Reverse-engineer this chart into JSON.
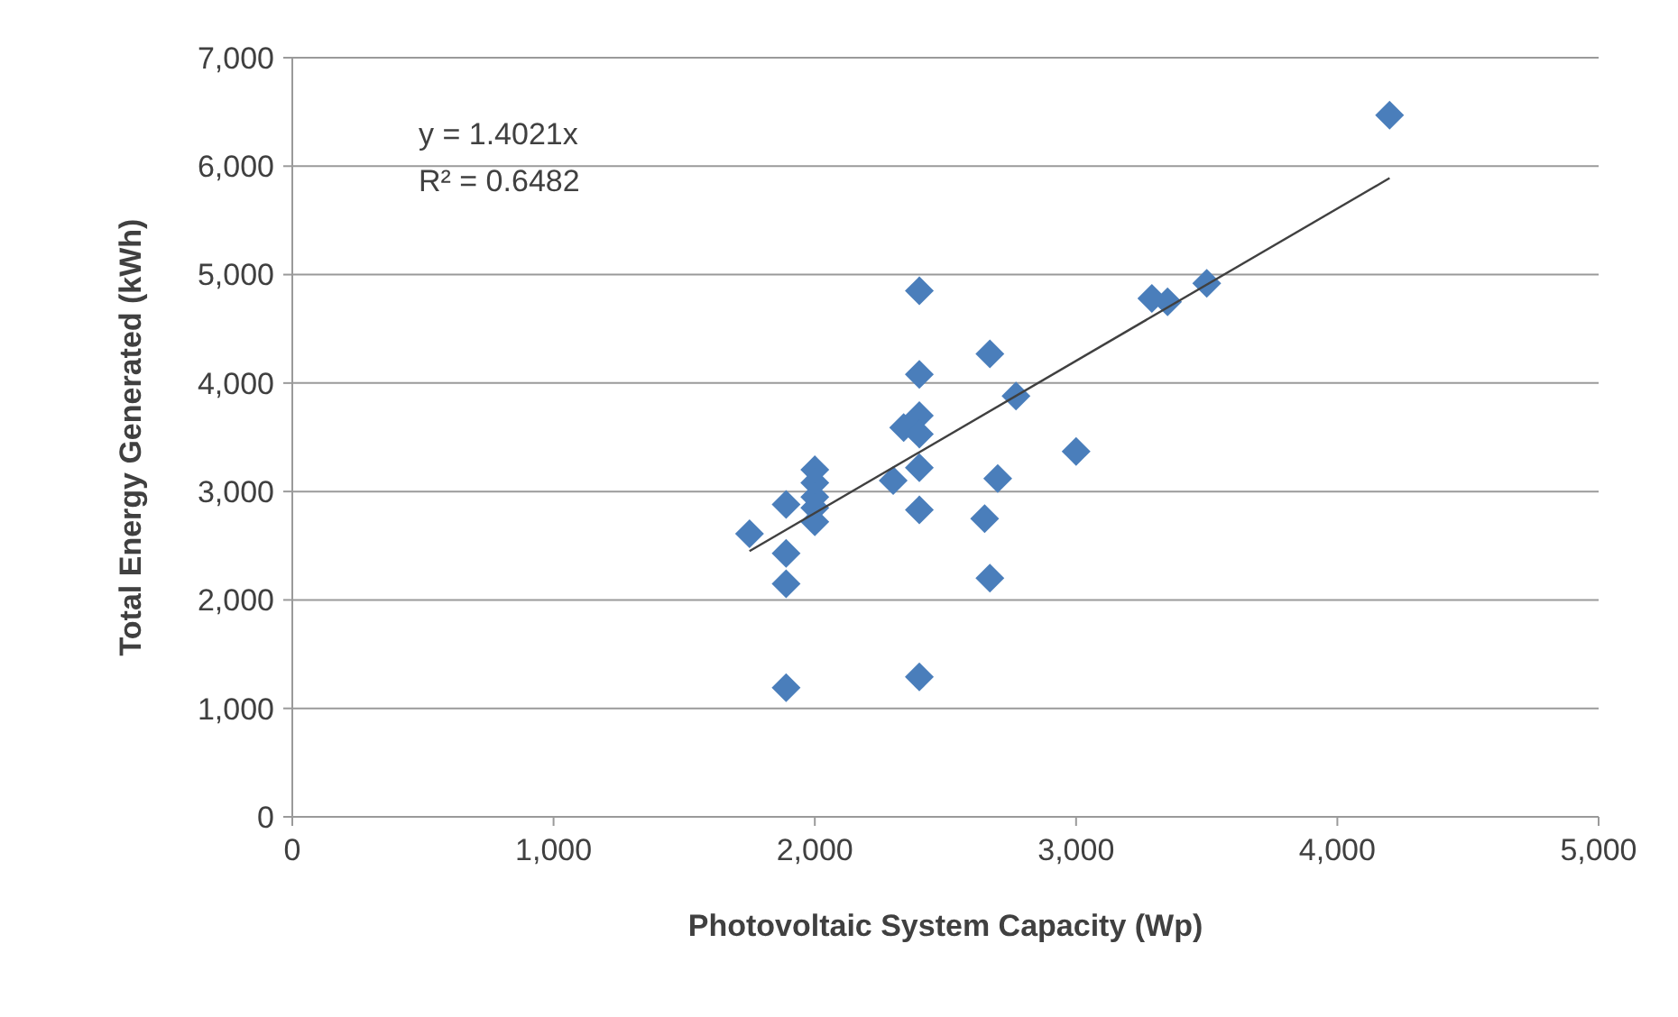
{
  "chart_data": {
    "type": "scatter",
    "xlabel": "Photovoltaic System Capacity (Wp)",
    "ylabel": "Total Energy Generated (kWh)",
    "annotations": [
      "y = 1.4021x",
      "R² = 0.6482"
    ],
    "series": [
      {
        "color": "#4a7ebb",
        "marker": "diamond",
        "x": [
          1750,
          1890,
          1890,
          1890,
          1890,
          2000,
          2000,
          2000,
          2000,
          2000,
          2300,
          2340,
          2400,
          2400,
          2400,
          2400,
          2400,
          2400,
          2400,
          2650,
          2670,
          2670,
          2700,
          2770,
          3000,
          3290,
          3350,
          3500,
          4200
        ],
        "values": [
          2610,
          2880,
          2430,
          2150,
          1190,
          3200,
          3080,
          2950,
          2850,
          2720,
          3100,
          3590,
          4850,
          4080,
          3700,
          3530,
          3220,
          2830,
          1290,
          2750,
          4270,
          2200,
          3120,
          3880,
          3370,
          4780,
          4750,
          4920,
          6470
        ]
      },
      {
        "type": "line",
        "color": "#404040",
        "line_style": "solid",
        "marker": "none",
        "x": [
          1750,
          4200
        ],
        "values": [
          2450,
          5890
        ]
      }
    ],
    "xlim": [
      0,
      5000
    ],
    "xticks": [
      {
        "value": 0,
        "label": "0"
      },
      {
        "value": 1000,
        "label": "1,000"
      },
      {
        "value": 2000,
        "label": "2,000"
      },
      {
        "value": 3000,
        "label": "3,000"
      },
      {
        "value": 4000,
        "label": "4,000"
      },
      {
        "value": 5000,
        "label": "5,000"
      }
    ],
    "ylim": [
      0,
      7000
    ],
    "yticks": [
      {
        "value": 0,
        "label": "0"
      },
      {
        "value": 1000,
        "label": "1,000"
      },
      {
        "value": 2000,
        "label": "2,000"
      },
      {
        "value": 3000,
        "label": "3,000"
      },
      {
        "value": 4000,
        "label": "4,000"
      },
      {
        "value": 5000,
        "label": "5,000"
      },
      {
        "value": 6000,
        "label": "6,000"
      },
      {
        "value": 7000,
        "label": "7,000"
      }
    ],
    "grid": "y"
  }
}
